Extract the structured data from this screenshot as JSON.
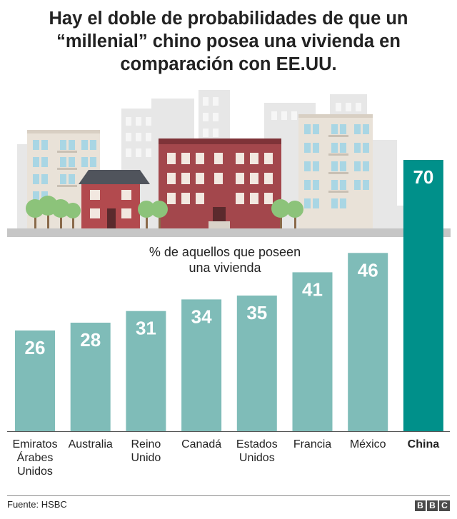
{
  "title": "Hay el doble de probabilidades de que un “millenial” chino posea una vivienda en comparación con EE.UU.",
  "source": "Fuente: HSBC",
  "logo": [
    "B",
    "B",
    "C"
  ],
  "colors": {
    "bar": "#7fbcb8",
    "bar_highlight": "#00908a",
    "text": "#222222",
    "label_on_bar": "#ffffff"
  },
  "chart_data": {
    "type": "bar",
    "title": "Hay el doble de probabilidades de que un “millenial” chino posea una vivienda en comparación con EE.UU.",
    "subtitle": "% de aquellos que poseen una vivienda",
    "subtitle_lines": [
      "% de aquellos que poseen",
      "una vivienda"
    ],
    "categories": [
      "Emiratos Árabes Unidos",
      "Australia",
      "Reino Unido",
      "Canadá",
      "Estados Unidos",
      "Francia",
      "México",
      "China"
    ],
    "category_lines": [
      [
        "Emiratos",
        "Árabes",
        "Unidos"
      ],
      [
        "Australia"
      ],
      [
        "Reino",
        "Unido"
      ],
      [
        "Canadá"
      ],
      [
        "Estados",
        "Unidos"
      ],
      [
        "Francia"
      ],
      [
        "México"
      ],
      [
        "China"
      ]
    ],
    "values": [
      26,
      28,
      31,
      34,
      35,
      41,
      46,
      70
    ],
    "highlight": "China",
    "ylim": [
      0,
      70
    ],
    "grid": false,
    "legend": "none",
    "xlabel": "",
    "ylabel": ""
  }
}
